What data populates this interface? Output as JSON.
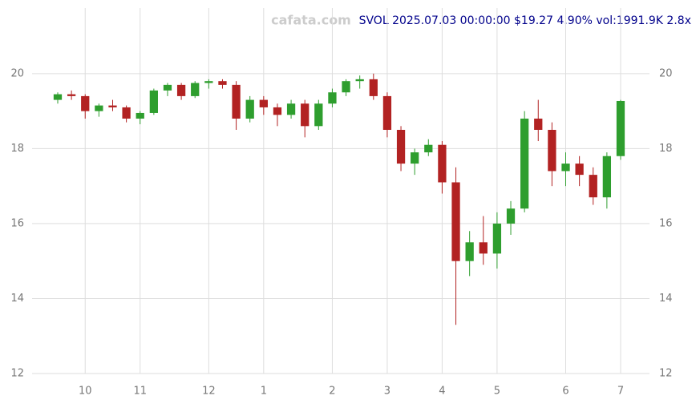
{
  "chart_data": {
    "type": "candlestick",
    "title": "SVOL 2025.07.03 00:00:00 $19.27 4.90% vol:1991.9K 2.8x",
    "watermark": "cafata.com",
    "categories": [
      null,
      null,
      "10",
      null,
      null,
      null,
      "11",
      null,
      null,
      null,
      null,
      "12",
      null,
      null,
      null,
      "1",
      null,
      null,
      null,
      null,
      "2",
      null,
      null,
      null,
      "3",
      null,
      null,
      null,
      "4",
      null,
      null,
      null,
      "5",
      null,
      null,
      null,
      null,
      "6",
      null,
      null,
      null,
      "7"
    ],
    "open": [
      19.3,
      19.45,
      19.4,
      19.0,
      19.15,
      19.1,
      18.8,
      18.95,
      19.55,
      19.7,
      19.4,
      19.75,
      19.8,
      19.7,
      18.8,
      19.3,
      19.1,
      18.9,
      19.2,
      18.6,
      19.2,
      19.5,
      19.8,
      19.85,
      19.4,
      18.5,
      17.6,
      17.9,
      18.1,
      17.1,
      15.0,
      15.5,
      15.2,
      16.0,
      16.4,
      18.8,
      18.5,
      17.4,
      17.6,
      17.3,
      16.7,
      17.8
    ],
    "high": [
      19.5,
      19.55,
      19.45,
      19.2,
      19.3,
      19.15,
      19.0,
      19.6,
      19.75,
      19.75,
      19.8,
      19.85,
      19.85,
      19.8,
      19.4,
      19.4,
      19.2,
      19.3,
      19.3,
      19.3,
      19.6,
      19.85,
      19.95,
      20.0,
      19.5,
      18.6,
      18.0,
      18.25,
      18.2,
      17.5,
      15.8,
      16.2,
      16.3,
      16.6,
      19.0,
      19.3,
      18.7,
      17.9,
      17.8,
      17.5,
      17.9,
      19.3
    ],
    "low": [
      19.2,
      19.3,
      18.8,
      18.85,
      19.0,
      18.7,
      18.65,
      18.9,
      19.4,
      19.3,
      19.35,
      19.6,
      19.6,
      18.5,
      18.7,
      18.9,
      18.6,
      18.8,
      18.3,
      18.5,
      19.1,
      19.4,
      19.6,
      19.3,
      18.3,
      17.4,
      17.3,
      17.8,
      16.8,
      13.3,
      14.6,
      14.9,
      14.8,
      15.7,
      16.3,
      18.2,
      17.0,
      17.0,
      17.0,
      16.5,
      16.4,
      17.7
    ],
    "close": [
      19.45,
      19.4,
      19.0,
      19.15,
      19.1,
      18.8,
      18.95,
      19.55,
      19.7,
      19.4,
      19.75,
      19.8,
      19.7,
      18.8,
      19.3,
      19.1,
      18.9,
      19.2,
      18.6,
      19.2,
      19.5,
      19.8,
      19.85,
      19.4,
      18.5,
      17.6,
      17.9,
      18.1,
      17.1,
      15.0,
      15.5,
      15.2,
      16.0,
      16.4,
      18.8,
      18.5,
      17.4,
      17.6,
      17.3,
      16.7,
      17.8,
      19.27
    ],
    "up_color": "#2e9e2e",
    "down_color": "#b22222",
    "ylim": [
      12,
      21.75
    ],
    "yticks": [
      12,
      14,
      16,
      18,
      20
    ],
    "grid": true
  }
}
